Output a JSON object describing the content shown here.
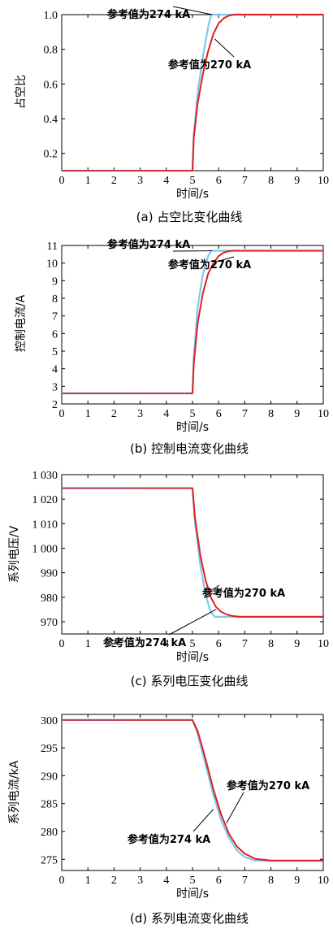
{
  "chart_data": [
    {
      "type": "line",
      "caption": "(a) 占空比变化曲线",
      "xlabel": "时间/s",
      "ylabel": "占空比",
      "xlim": [
        0,
        10
      ],
      "ylim": [
        0.1,
        1.0
      ],
      "xticks": [
        "0",
        "1",
        "2",
        "3",
        "4",
        "5",
        "6",
        "7",
        "8",
        "9",
        "10"
      ],
      "yticks": [
        {
          "v": 0.2,
          "t": "0.2"
        },
        {
          "v": 0.4,
          "t": "0.4"
        },
        {
          "v": 0.6,
          "t": "0.6"
        },
        {
          "v": 0.8,
          "t": "0.8"
        },
        {
          "v": 1.0,
          "t": "1.0"
        }
      ],
      "series": [
        {
          "name": "参考值为274 kA",
          "color": "#7ec8f0",
          "x": [
            0,
            5,
            5.05,
            5.2,
            5.4,
            5.6,
            5.72,
            6,
            10
          ],
          "y": [
            0.1,
            0.1,
            0.31,
            0.55,
            0.76,
            0.93,
            1.0,
            1.0,
            1.0
          ]
        },
        {
          "name": "参考值为270 kA",
          "color": "#e02020",
          "x": [
            0,
            5,
            5.05,
            5.2,
            5.4,
            5.6,
            5.8,
            6.0,
            6.2,
            6.4,
            6.6,
            10
          ],
          "y": [
            0.1,
            0.1,
            0.29,
            0.49,
            0.66,
            0.79,
            0.89,
            0.95,
            0.98,
            0.995,
            1.0,
            1.0
          ]
        }
      ],
      "annotations": [
        {
          "text": "参考值为274 kA"
        },
        {
          "text": "参考值为270 kA"
        }
      ]
    },
    {
      "type": "line",
      "caption": "(b) 控制电流变化曲线",
      "xlabel": "时间/s",
      "ylabel": "控制电流/A",
      "xlim": [
        0,
        10
      ],
      "ylim": [
        2,
        11
      ],
      "xticks": [
        "0",
        "1",
        "2",
        "3",
        "4",
        "5",
        "6",
        "7",
        "8",
        "9",
        "10"
      ],
      "yticks": [
        {
          "v": 2,
          "t": "2"
        },
        {
          "v": 3,
          "t": "3"
        },
        {
          "v": 4,
          "t": "4"
        },
        {
          "v": 5,
          "t": "5"
        },
        {
          "v": 6,
          "t": "6"
        },
        {
          "v": 7,
          "t": "7"
        },
        {
          "v": 8,
          "t": "8"
        },
        {
          "v": 9,
          "t": "9"
        },
        {
          "v": 10,
          "t": "10"
        },
        {
          "v": 11,
          "t": "11"
        }
      ],
      "series": [
        {
          "name": "参考值为274 kA",
          "color": "#7ec8f0",
          "x": [
            0,
            5,
            5.05,
            5.2,
            5.4,
            5.6,
            5.72,
            6,
            10
          ],
          "y": [
            2.6,
            2.6,
            4.7,
            7.5,
            9.4,
            10.4,
            10.7,
            10.7,
            10.7
          ]
        },
        {
          "name": "参考值为270 kA",
          "color": "#e02020",
          "x": [
            0,
            5,
            5.05,
            5.2,
            5.4,
            5.6,
            5.8,
            6.0,
            6.2,
            6.4,
            6.6,
            10
          ],
          "y": [
            2.6,
            2.6,
            4.3,
            6.6,
            8.3,
            9.4,
            10.0,
            10.4,
            10.6,
            10.68,
            10.7,
            10.7
          ]
        }
      ],
      "annotations": [
        {
          "text": "参考值为274 kA"
        },
        {
          "text": "参考值为270 kA"
        }
      ]
    },
    {
      "type": "line",
      "caption": "(c) 系列电压变化曲线",
      "xlabel": "时间/s",
      "ylabel": "系列电压/V",
      "xlim": [
        0,
        10
      ],
      "ylim": [
        965,
        1030
      ],
      "xticks": [
        "0",
        "1",
        "2",
        "3",
        "4",
        "5",
        "6",
        "7",
        "8",
        "9",
        "10"
      ],
      "yticks": [
        {
          "v": 970,
          "t": "970"
        },
        {
          "v": 980,
          "t": "980"
        },
        {
          "v": 990,
          "t": "990"
        },
        {
          "v": 1000,
          "t": "1 000"
        },
        {
          "v": 1010,
          "t": "1 010"
        },
        {
          "v": 1020,
          "t": "1 020"
        },
        {
          "v": 1030,
          "t": "1 030"
        }
      ],
      "series": [
        {
          "name": "参考值为274 kA",
          "color": "#7ec8f0",
          "x": [
            0,
            5,
            5.1,
            5.3,
            5.5,
            5.7,
            5.85,
            6,
            10
          ],
          "y": [
            1024.5,
            1024.5,
            1010,
            993,
            981,
            974,
            972,
            972,
            972
          ]
        },
        {
          "name": "参考值为270 kA",
          "color": "#e02020",
          "x": [
            0,
            5,
            5.1,
            5.3,
            5.5,
            5.7,
            5.9,
            6.1,
            6.3,
            6.5,
            6.8,
            10
          ],
          "y": [
            1024.5,
            1024.5,
            1012,
            997,
            987,
            980,
            976,
            974,
            973,
            972.4,
            972,
            972
          ]
        }
      ],
      "annotations": [
        {
          "text": "参考值为270 kA"
        },
        {
          "text": "参考值为274 kA"
        }
      ]
    },
    {
      "type": "line",
      "caption": "(d) 系列电流变化曲线",
      "xlabel": "时间/s",
      "ylabel": "系列电流/kA",
      "xlim": [
        0,
        10
      ],
      "ylim": [
        273,
        301
      ],
      "xticks": [
        "0",
        "1",
        "2",
        "3",
        "4",
        "5",
        "6",
        "7",
        "8",
        "9",
        "10"
      ],
      "yticks": [
        {
          "v": 275,
          "t": "275"
        },
        {
          "v": 280,
          "t": "280"
        },
        {
          "v": 285,
          "t": "285"
        },
        {
          "v": 290,
          "t": "290"
        },
        {
          "v": 295,
          "t": "295"
        },
        {
          "v": 300,
          "t": "300"
        }
      ],
      "series": [
        {
          "name": "参考值为274 kA",
          "color": "#7ec8f0",
          "x": [
            0,
            5,
            5.2,
            5.5,
            5.8,
            6.1,
            6.4,
            6.7,
            7.0,
            7.4,
            8,
            10
          ],
          "y": [
            300,
            300,
            297.5,
            292,
            286.5,
            282,
            278.8,
            276.6,
            275.4,
            274.8,
            274.7,
            274.7
          ]
        },
        {
          "name": "参考值为270 kA",
          "color": "#e02020",
          "x": [
            0,
            5,
            5.2,
            5.5,
            5.8,
            6.1,
            6.4,
            6.7,
            7.0,
            7.4,
            8,
            10
          ],
          "y": [
            300,
            300,
            298,
            293,
            287.5,
            283,
            279.5,
            277.3,
            276,
            275.1,
            274.8,
            274.8
          ]
        }
      ],
      "annotations": [
        {
          "text": "参考值为270 kA"
        },
        {
          "text": "参考值为274 kA"
        }
      ]
    }
  ]
}
